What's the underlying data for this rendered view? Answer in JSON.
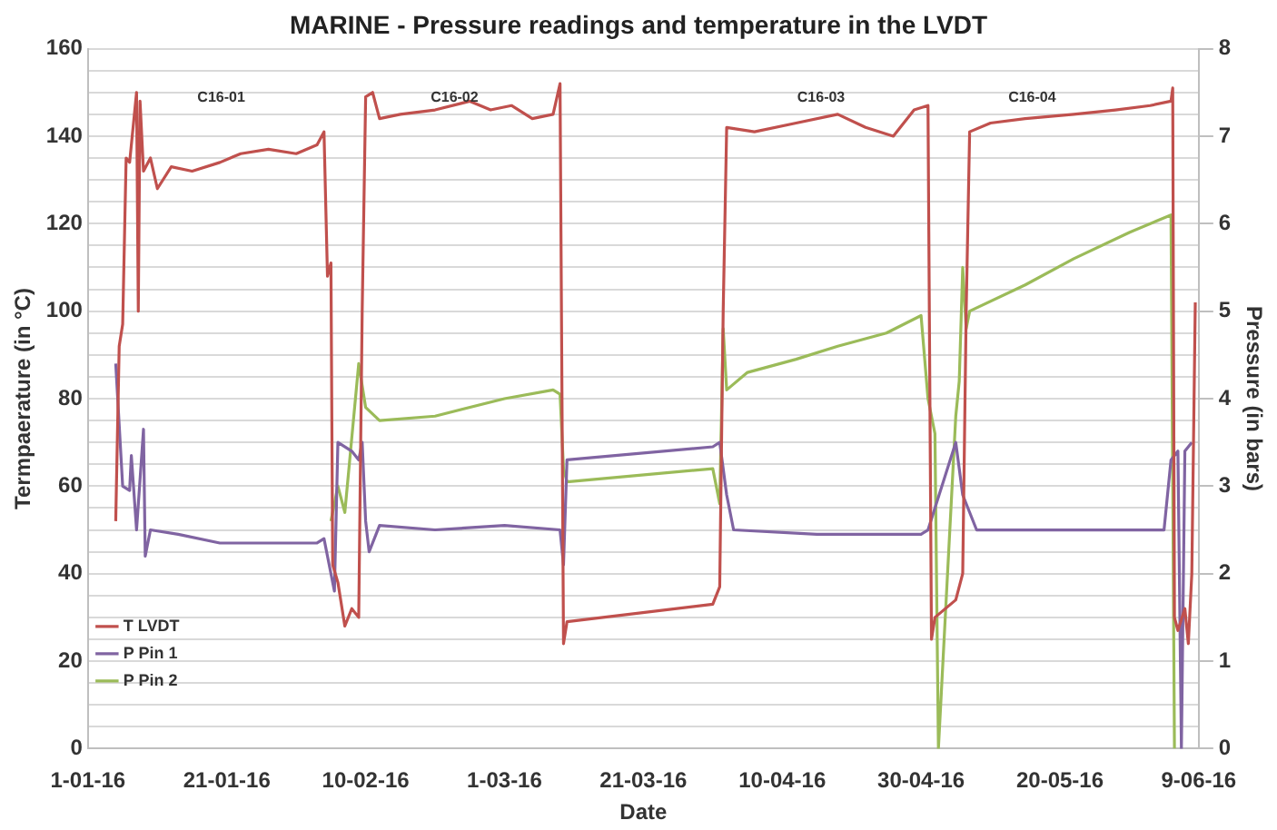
{
  "chart_data": {
    "type": "line",
    "title": "MARINE - Pressure readings and temperature in the LVDT",
    "xlabel": "Date",
    "ylabel": "Termpaerature (in °C)",
    "y2label": "Pressure (in bars)",
    "xlim": [
      "2016-01-01",
      "2016-06-09"
    ],
    "xticks": [
      {
        "value": "2016-01-01",
        "label": "1-01-16"
      },
      {
        "value": "2016-01-21",
        "label": "21-01-16"
      },
      {
        "value": "2016-02-10",
        "label": "10-02-16"
      },
      {
        "value": "2016-03-01",
        "label": "1-03-16"
      },
      {
        "value": "2016-03-21",
        "label": "21-03-16"
      },
      {
        "value": "2016-04-10",
        "label": "10-04-16"
      },
      {
        "value": "2016-04-30",
        "label": "30-04-16"
      },
      {
        "value": "2016-05-20",
        "label": "20-05-16"
      },
      {
        "value": "2016-06-09",
        "label": "9-06-16"
      }
    ],
    "ylim": [
      0,
      160
    ],
    "yticks": [
      0,
      {
        "value": 5,
        "label": null
      },
      {
        "value": 10,
        "label": null
      },
      {
        "value": 15,
        "label": null
      },
      20,
      {
        "value": 25,
        "label": null
      },
      {
        "value": 30,
        "label": null
      },
      {
        "value": 35,
        "label": null
      },
      40,
      {
        "value": 45,
        "label": null
      },
      {
        "value": 50,
        "label": null
      },
      {
        "value": 55,
        "label": null
      },
      60,
      {
        "value": 65,
        "label": null
      },
      {
        "value": 70,
        "label": null
      },
      {
        "value": 75,
        "label": null
      },
      80,
      {
        "value": 85,
        "label": null
      },
      {
        "value": 90,
        "label": null
      },
      {
        "value": 95,
        "label": null
      },
      100,
      {
        "value": 105,
        "label": null
      },
      {
        "value": 110,
        "label": null
      },
      {
        "value": 115,
        "label": null
      },
      120,
      {
        "value": 125,
        "label": null
      },
      {
        "value": 130,
        "label": null
      },
      {
        "value": 135,
        "label": null
      },
      140,
      {
        "value": 145,
        "label": null
      },
      {
        "value": 150,
        "label": null
      },
      {
        "value": 155,
        "label": null
      },
      160
    ],
    "y2lim": [
      0,
      8
    ],
    "y2ticks": [
      0,
      1,
      2,
      3,
      4,
      5,
      6,
      7,
      8
    ],
    "grid": "y",
    "legend": "bottom left",
    "marker": "none",
    "line_style": "solid",
    "annotations": [
      "C16-01",
      "C16-02",
      "C16-03",
      "C16-04"
    ],
    "series": [
      {
        "name": "T LVDT",
        "color": "#c0504d",
        "x": [
          "2016-01-05",
          "2016-01-05T12:00",
          "2016-01-06",
          "2016-01-06T12:00",
          "2016-01-07",
          "2016-01-08",
          "2016-01-08T06:00",
          "2016-01-08T12:00",
          "2016-01-09",
          "2016-01-10",
          "2016-01-11",
          "2016-01-13",
          "2016-01-16",
          "2016-01-20",
          "2016-01-23",
          "2016-01-27",
          "2016-01-31",
          "2016-02-03",
          "2016-02-04",
          "2016-02-04T12:00",
          "2016-02-05",
          "2016-02-05T06:00",
          "2016-02-06",
          "2016-02-07",
          "2016-02-08",
          "2016-02-09",
          "2016-02-09T12:00",
          "2016-02-10",
          "2016-02-11",
          "2016-02-12",
          "2016-02-15",
          "2016-02-20",
          "2016-02-25",
          "2016-02-28",
          "2016-03-02",
          "2016-03-05",
          "2016-03-08",
          "2016-03-09",
          "2016-03-09T12:00",
          "2016-03-10",
          "2016-03-31",
          "2016-04-01",
          "2016-04-01T12:00",
          "2016-04-02",
          "2016-04-06",
          "2016-04-12",
          "2016-04-18",
          "2016-04-22",
          "2016-04-26",
          "2016-04-29",
          "2016-05-01",
          "2016-05-01T12:00",
          "2016-05-02",
          "2016-05-05",
          "2016-05-06",
          "2016-05-06T12:00",
          "2016-05-07",
          "2016-05-10",
          "2016-05-15",
          "2016-05-22",
          "2016-05-28",
          "2016-06-02",
          "2016-06-05",
          "2016-06-05T06:00",
          "2016-06-05T12:00",
          "2016-06-06",
          "2016-06-07",
          "2016-06-07T12:00",
          "2016-06-08",
          "2016-06-08T12:00"
        ],
        "values": [
          52,
          92,
          97,
          135,
          134,
          150,
          100,
          148,
          132,
          135,
          128,
          133,
          132,
          134,
          136,
          137,
          136,
          138,
          141,
          108,
          111,
          42,
          38,
          28,
          32,
          30,
          100,
          149,
          150,
          144,
          145,
          146,
          148,
          146,
          147,
          144,
          145,
          152,
          24,
          29,
          33,
          37,
          100,
          142,
          141,
          143,
          145,
          142,
          140,
          146,
          147,
          25,
          30,
          34,
          40,
          100,
          141,
          143,
          144,
          145,
          146,
          147,
          148,
          151,
          30,
          27,
          32,
          24,
          40,
          102
        ]
      },
      {
        "name": "P Pin 1",
        "color": "#8064a2",
        "axis": "y2",
        "x": [
          "2016-01-05",
          "2016-01-06",
          "2016-01-07",
          "2016-01-07T06:00",
          "2016-01-08",
          "2016-01-09",
          "2016-01-09T06:00",
          "2016-01-10",
          "2016-01-14",
          "2016-01-20",
          "2016-02-03",
          "2016-02-04",
          "2016-02-05",
          "2016-02-05T12:00",
          "2016-02-06",
          "2016-02-08",
          "2016-02-09",
          "2016-02-09T12:00",
          "2016-02-10",
          "2016-02-10T12:00",
          "2016-02-12",
          "2016-02-20",
          "2016-03-01",
          "2016-03-09",
          "2016-03-09T12:00",
          "2016-03-10",
          "2016-03-31",
          "2016-04-01",
          "2016-04-02",
          "2016-04-03",
          "2016-04-15",
          "2016-04-30",
          "2016-05-01",
          "2016-05-05",
          "2016-05-06",
          "2016-05-08",
          "2016-05-20",
          "2016-06-04",
          "2016-06-05",
          "2016-06-06",
          "2016-06-06T12:00",
          "2016-06-07",
          "2016-06-08"
        ],
        "values": [
          4.4,
          3.0,
          2.95,
          3.35,
          2.5,
          3.65,
          2.2,
          2.5,
          2.45,
          2.35,
          2.35,
          2.4,
          2.0,
          1.8,
          3.5,
          3.4,
          3.3,
          3.5,
          2.6,
          2.25,
          2.55,
          2.5,
          2.55,
          2.5,
          2.1,
          3.3,
          3.45,
          3.5,
          2.9,
          2.5,
          2.45,
          2.45,
          2.5,
          3.5,
          2.9,
          2.5,
          2.5,
          2.5,
          3.3,
          3.4,
          0,
          3.4,
          3.5
        ]
      },
      {
        "name": "P Pin 2",
        "color": "#9bbb59",
        "axis": "y2",
        "x": [
          "2016-02-05",
          "2016-02-06",
          "2016-02-07",
          "2016-02-09",
          "2016-02-10",
          "2016-02-12",
          "2016-02-20",
          "2016-03-01",
          "2016-03-08",
          "2016-03-09",
          "2016-03-09T12:00",
          "2016-03-10",
          "2016-03-31",
          "2016-04-01",
          "2016-04-01T12:00",
          "2016-04-02",
          "2016-04-05",
          "2016-04-12",
          "2016-04-18",
          "2016-04-25",
          "2016-04-30",
          "2016-05-01",
          "2016-05-02",
          "2016-05-02T12:00",
          "2016-05-05",
          "2016-05-05T12:00",
          "2016-05-06",
          "2016-05-06T12:00",
          "2016-05-07",
          "2016-05-15",
          "2016-05-22",
          "2016-05-30",
          "2016-06-05",
          "2016-06-05T12:00"
        ],
        "values": [
          2.6,
          3.0,
          2.7,
          4.4,
          3.9,
          3.75,
          3.8,
          4.0,
          4.1,
          4.05,
          3.2,
          3.05,
          3.2,
          2.8,
          4.8,
          4.1,
          4.3,
          4.45,
          4.6,
          4.75,
          4.95,
          4.0,
          3.6,
          0,
          3.8,
          4.2,
          5.5,
          4.8,
          5.0,
          5.3,
          5.6,
          5.9,
          6.1,
          0
        ]
      }
    ]
  }
}
